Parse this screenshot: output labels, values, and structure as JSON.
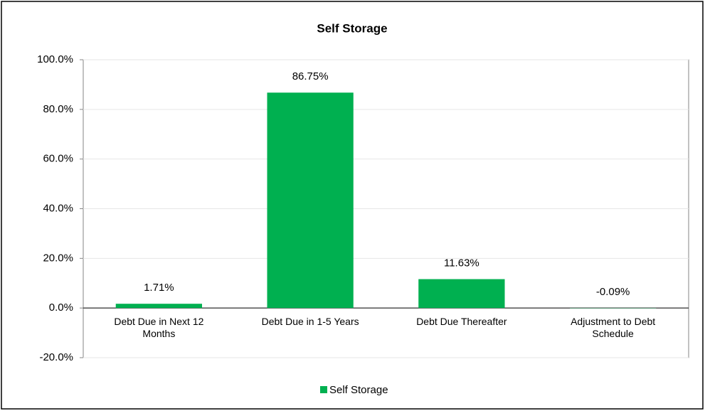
{
  "chart_data": {
    "type": "bar",
    "title": "Self Storage",
    "categories": [
      "Debt Due in Next 12 Months",
      "Debt Due in 1-5 Years",
      "Debt Due Thereafter",
      "Adjustment to Debt Schedule"
    ],
    "series": [
      {
        "name": "Self Storage",
        "color": "#00b050",
        "values": [
          1.71,
          86.75,
          11.63,
          -0.09
        ],
        "value_labels": [
          "1.71%",
          "86.75%",
          "11.63%",
          "-0.09%"
        ]
      }
    ],
    "ylim": [
      -20,
      100
    ],
    "yticks": [
      {
        "value": -20,
        "label": "-20.0%"
      },
      {
        "value": 0,
        "label": "0.0%"
      },
      {
        "value": 20,
        "label": "20.0%"
      },
      {
        "value": 40,
        "label": "40.0%"
      },
      {
        "value": 60,
        "label": "60.0%"
      },
      {
        "value": 80,
        "label": "80.0%"
      },
      {
        "value": 100,
        "label": "100.0%"
      }
    ],
    "grid": true,
    "legend": "bottom"
  }
}
